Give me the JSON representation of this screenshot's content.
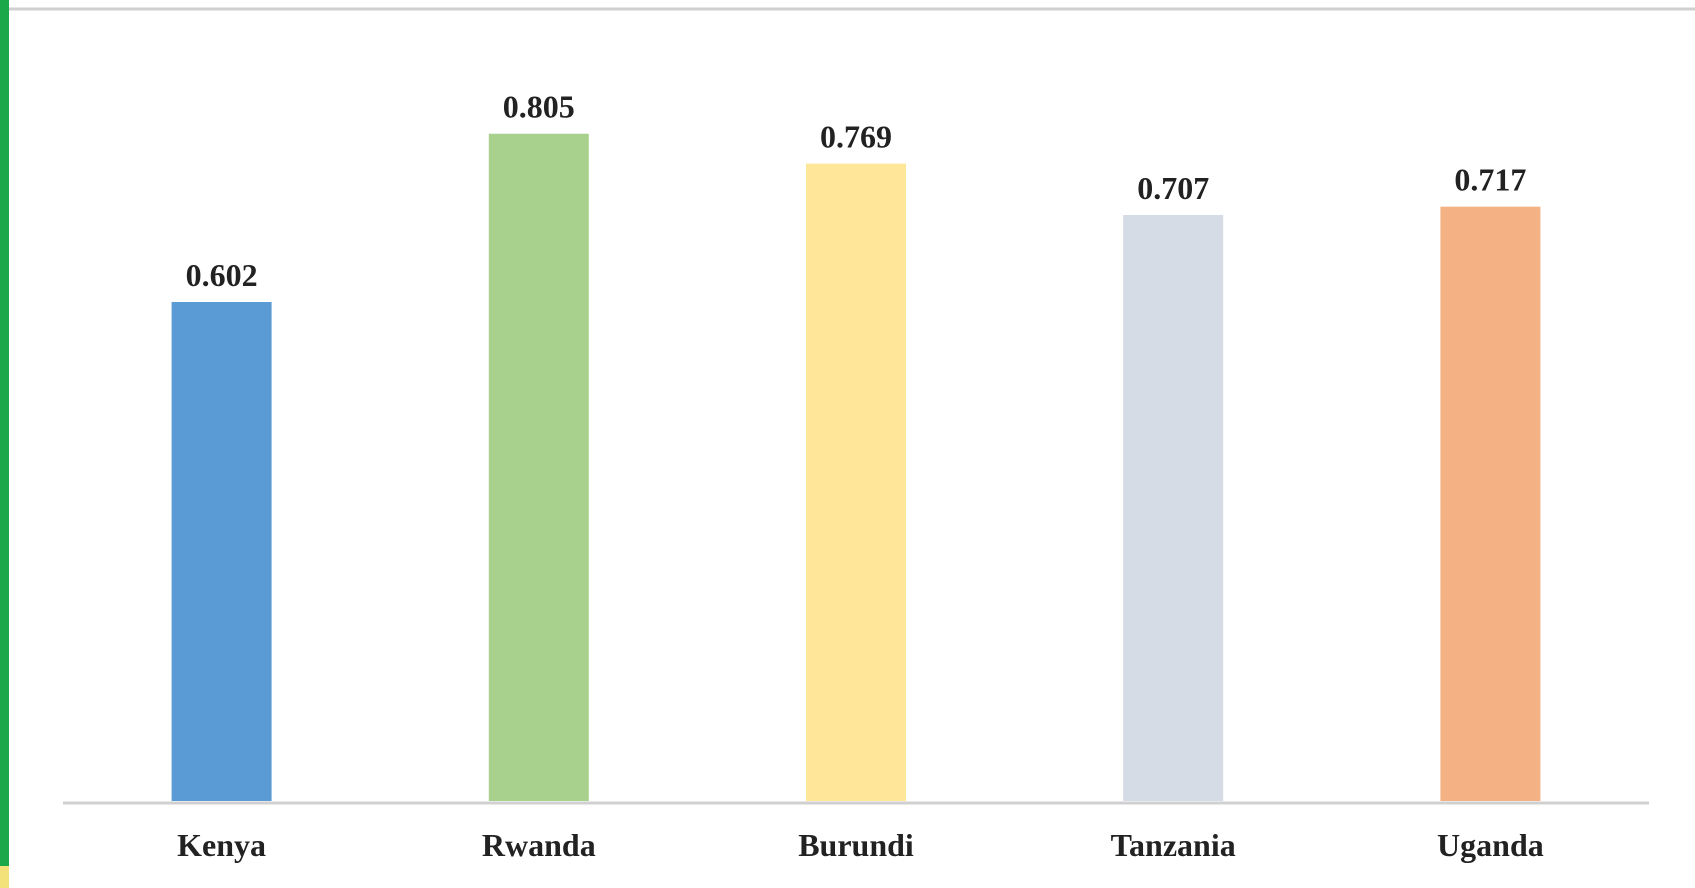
{
  "chart_data": {
    "type": "bar",
    "categories": [
      "Kenya",
      "Rwanda",
      "Burundi",
      "Tanzania",
      "Uganda"
    ],
    "values": [
      0.602,
      0.805,
      0.769,
      0.707,
      0.717
    ],
    "colors": [
      "#5b9bd5",
      "#a9d18e",
      "#ffe699",
      "#d6dce5",
      "#f4b183"
    ],
    "ylim": [
      0,
      0.9
    ]
  }
}
